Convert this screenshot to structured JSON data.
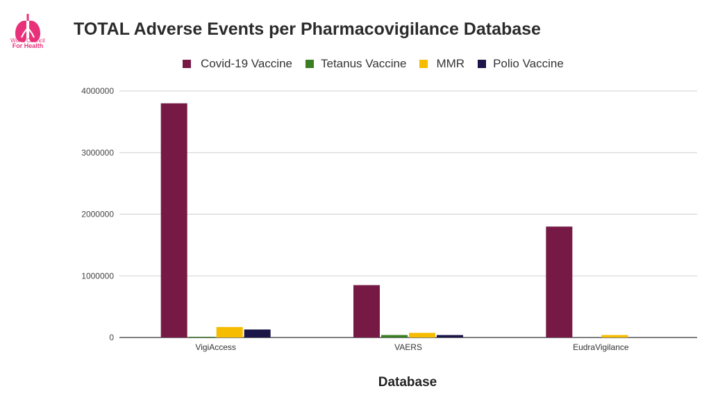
{
  "logo": {
    "line1": "World Council",
    "line2": "For Health",
    "color": "#e8317a"
  },
  "chart_data": {
    "type": "bar",
    "title": "TOTAL Adverse Events per Pharmacovigilance Database",
    "xlabel": "Database",
    "ylabel": "",
    "ylim": [
      0,
      4000000
    ],
    "yticks": [
      0,
      1000000,
      2000000,
      3000000,
      4000000
    ],
    "ytick_labels": [
      "0",
      "1000000",
      "2000000",
      "3000000",
      "4000000"
    ],
    "grid": true,
    "legend_position": "top",
    "categories": [
      "VigiAccess",
      "VAERS",
      "EudraVigilance"
    ],
    "series": [
      {
        "name": "Covid-19 Vaccine",
        "color": "#761a45",
        "values": [
          3800000,
          850000,
          1800000
        ]
      },
      {
        "name": "Tetanus Vaccine",
        "color": "#3a7d22",
        "values": [
          12000,
          40000,
          0
        ]
      },
      {
        "name": "MMR",
        "color": "#f6bc00",
        "values": [
          170000,
          75000,
          40000
        ]
      },
      {
        "name": "Polio Vaccine",
        "color": "#1c1547",
        "values": [
          130000,
          40000,
          0
        ]
      }
    ]
  }
}
